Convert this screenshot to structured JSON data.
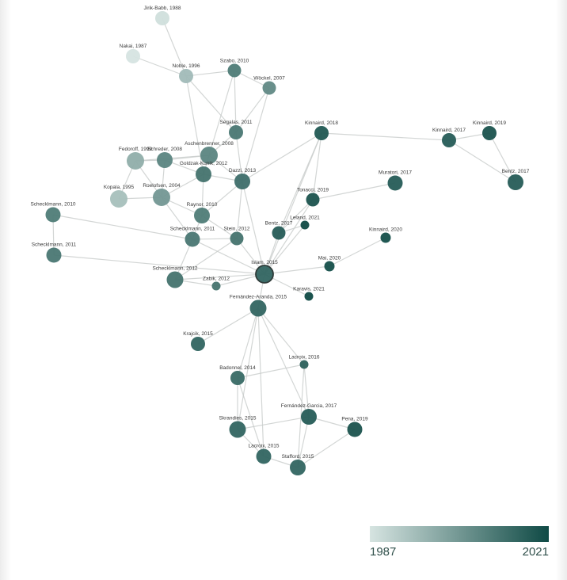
{
  "network": {
    "nodes": [
      {
        "id": "jb88",
        "label": "Jirik-Babb, 1988",
        "year": 1988
      },
      {
        "id": "na87",
        "label": "Nakai, 1987",
        "year": 1987
      },
      {
        "id": "no96",
        "label": "Noble, 1996",
        "year": 1996
      },
      {
        "id": "sz10",
        "label": "Szabo, 2010",
        "year": 2010
      },
      {
        "id": "wo07",
        "label": "Wöckel, 2007",
        "year": 2007
      },
      {
        "id": "se11",
        "label": "Segalas, 2011",
        "year": 2011
      },
      {
        "id": "ki18",
        "label": "Kinnaird, 2018",
        "year": 2018
      },
      {
        "id": "ki17",
        "label": "Kinnaird, 2017",
        "year": 2017
      },
      {
        "id": "ki19",
        "label": "Kinnaird, 2019",
        "year": 2019
      },
      {
        "id": "as08",
        "label": "Aschenbrenner, 2008",
        "year": 2008
      },
      {
        "id": "fe99",
        "label": "Fedoroff, 1999",
        "year": 1999
      },
      {
        "id": "sc08",
        "label": "Schreder, 2008",
        "year": 2008
      },
      {
        "id": "go12",
        "label": "Goldzak-Kunik, 2012",
        "year": 2012
      },
      {
        "id": "da13",
        "label": "Dazzi, 2013",
        "year": 2013
      },
      {
        "id": "mu17",
        "label": "Muratori, 2017",
        "year": 2017
      },
      {
        "id": "be17b",
        "label": "Bentz, 2017",
        "year": 2017
      },
      {
        "id": "ko95",
        "label": "Kopala, 1995",
        "year": 1995
      },
      {
        "id": "ro04",
        "label": "Roelofsen, 2004",
        "year": 2004
      },
      {
        "id": "to19",
        "label": "Tonacci, 2019",
        "year": 2019
      },
      {
        "id": "sk10",
        "label": "Schecklmann, 2010",
        "year": 2010
      },
      {
        "id": "ra10",
        "label": "Raynor, 2010",
        "year": 2010
      },
      {
        "id": "le21",
        "label": "Leland, 2021",
        "year": 2021
      },
      {
        "id": "be17",
        "label": "Bentz, 2017",
        "year": 2017
      },
      {
        "id": "ki20",
        "label": "Kinnaird, 2020",
        "year": 2020
      },
      {
        "id": "sk11b",
        "label": "Schecklmann, 2011",
        "year": 2011
      },
      {
        "id": "st12",
        "label": "Stein, 2012",
        "year": 2012
      },
      {
        "id": "sk11",
        "label": "Schecklmann, 2011",
        "year": 2011
      },
      {
        "id": "ma20",
        "label": "Mai, 2020",
        "year": 2020
      },
      {
        "id": "is15",
        "label": "Islam, 2015",
        "year": 2015
      },
      {
        "id": "sk12",
        "label": "Schecklmann, 2012",
        "year": 2012
      },
      {
        "id": "za12",
        "label": "Zabik, 2012",
        "year": 2012
      },
      {
        "id": "ka21",
        "label": "Karavis, 2021",
        "year": 2021
      },
      {
        "id": "fa15",
        "label": "Fernández-Aranda, 2015",
        "year": 2015
      },
      {
        "id": "kr15",
        "label": "Krajcik, 2015",
        "year": 2015
      },
      {
        "id": "la16",
        "label": "Lacroix, 2016",
        "year": 2016
      },
      {
        "id": "ba14",
        "label": "Badonnel, 2014",
        "year": 2014
      },
      {
        "id": "fg17",
        "label": "Fernández-Garcia, 2017",
        "year": 2017
      },
      {
        "id": "sk15",
        "label": "Skrandies, 2015",
        "year": 2015
      },
      {
        "id": "pe19",
        "label": "Pena, 2019",
        "year": 2019
      },
      {
        "id": "la15",
        "label": "Lacroix, 2015",
        "year": 2015
      },
      {
        "id": "sf15",
        "label": "Stafford, 2015",
        "year": 2015
      }
    ],
    "edges": [
      [
        "jb88",
        "no96"
      ],
      [
        "na87",
        "no96"
      ],
      [
        "no96",
        "sz10"
      ],
      [
        "sz10",
        "wo07"
      ],
      [
        "no96",
        "se11"
      ],
      [
        "no96",
        "go12"
      ],
      [
        "sz10",
        "se11"
      ],
      [
        "sz10",
        "as08"
      ],
      [
        "wo07",
        "da13"
      ],
      [
        "wo07",
        "se11"
      ],
      [
        "se11",
        "as08"
      ],
      [
        "se11",
        "da13"
      ],
      [
        "as08",
        "go12"
      ],
      [
        "as08",
        "da13"
      ],
      [
        "as08",
        "fe99"
      ],
      [
        "as08",
        "sc08"
      ],
      [
        "fe99",
        "sc08"
      ],
      [
        "fe99",
        "ko95"
      ],
      [
        "fe99",
        "ro04"
      ],
      [
        "sc08",
        "go12"
      ],
      [
        "sc08",
        "ro04"
      ],
      [
        "go12",
        "da13"
      ],
      [
        "go12",
        "ro04"
      ],
      [
        "go12",
        "ra10"
      ],
      [
        "da13",
        "ra10"
      ],
      [
        "da13",
        "st12"
      ],
      [
        "da13",
        "is15"
      ],
      [
        "da13",
        "ki18"
      ],
      [
        "ko95",
        "ro04"
      ],
      [
        "ro04",
        "ra10"
      ],
      [
        "ro04",
        "sk11b"
      ],
      [
        "ra10",
        "sk11b"
      ],
      [
        "ra10",
        "st12"
      ],
      [
        "sk11b",
        "st12"
      ],
      [
        "sk11b",
        "sk12"
      ],
      [
        "sk11b",
        "is15"
      ],
      [
        "sk10",
        "sk11"
      ],
      [
        "sk10",
        "sk11b"
      ],
      [
        "sk11",
        "is15"
      ],
      [
        "sk12",
        "is15"
      ],
      [
        "sk12",
        "za12"
      ],
      [
        "za12",
        "is15"
      ],
      [
        "st12",
        "is15"
      ],
      [
        "be17",
        "is15"
      ],
      [
        "be17",
        "to19"
      ],
      [
        "to19",
        "is15"
      ],
      [
        "to19",
        "ki18"
      ],
      [
        "to19",
        "mu17"
      ],
      [
        "le21",
        "is15"
      ],
      [
        "le21",
        "be17"
      ],
      [
        "ma20",
        "is15"
      ],
      [
        "ma20",
        "ki20"
      ],
      [
        "ka21",
        "is15"
      ],
      [
        "is15",
        "fa15"
      ],
      [
        "ki18",
        "ki17"
      ],
      [
        "ki17",
        "ki19"
      ],
      [
        "ki19",
        "be17b"
      ],
      [
        "ki17",
        "be17b"
      ],
      [
        "ki18",
        "is15"
      ],
      [
        "fa15",
        "la16"
      ],
      [
        "fa15",
        "ba14"
      ],
      [
        "fa15",
        "fg17"
      ],
      [
        "fa15",
        "sk15"
      ],
      [
        "fa15",
        "la15"
      ],
      [
        "la16",
        "ba14"
      ],
      [
        "la16",
        "fg17"
      ],
      [
        "la16",
        "sf15"
      ],
      [
        "ba14",
        "sk15"
      ],
      [
        "ba14",
        "la15"
      ],
      [
        "fg17",
        "pe19"
      ],
      [
        "fg17",
        "sk15"
      ],
      [
        "fg17",
        "sf15"
      ],
      [
        "sk15",
        "la15"
      ],
      [
        "la15",
        "sf15"
      ],
      [
        "sf15",
        "pe19"
      ],
      [
        "kr15",
        "fa15"
      ],
      [
        "be17",
        "ki18"
      ],
      [
        "sk12",
        "st12"
      ]
    ]
  },
  "legend": {
    "min_label": "1987",
    "max_label": "2021",
    "color_min": "#d6e4e1",
    "color_max": "#0f4a45"
  },
  "style": {
    "edge_color": "#c8cccb",
    "highlight_stroke": "#2f3b39"
  }
}
